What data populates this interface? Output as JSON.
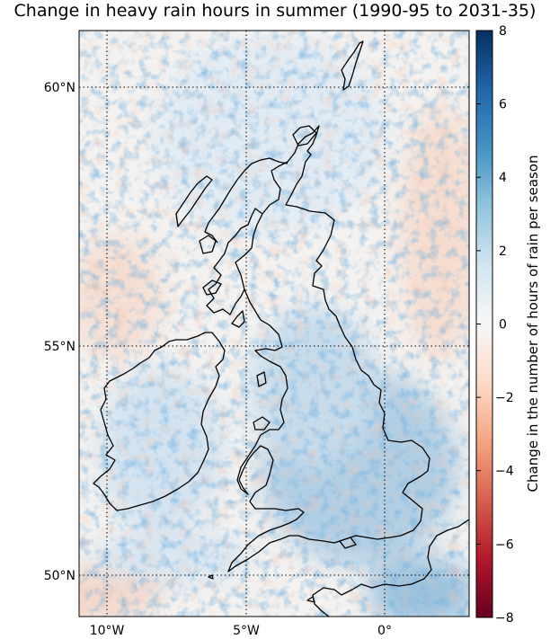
{
  "title": "Change in heavy rain hours in summer (1990-95 to 2031-35)",
  "map": {
    "projection": "Transverse Mercator (British National Grid)",
    "extent": {
      "lon": [
        -11,
        3
      ],
      "lat": [
        49,
        61
      ]
    },
    "gridlines": {
      "latitudes": [
        50,
        55,
        60
      ],
      "longitudes": [
        -10,
        -5,
        0
      ],
      "lat_labels": [
        "50°N",
        "55°N",
        "60°N"
      ],
      "lon_labels": [
        "10°W",
        "5°W",
        "0°"
      ],
      "style": "dotted"
    },
    "coastline_color": "#000000",
    "field": {
      "description_of_pattern": "noisy high-resolution field; mostly small positive changes over land, strongest over south-east England and the Midlands; mixed small negative changes over sea west of Ireland and North Sea",
      "colormap": "RdBu"
    }
  },
  "colorbar": {
    "label": "Change in the number of hours of rain per season",
    "ticks": [
      "8",
      "6",
      "4",
      "2",
      "0",
      "−2",
      "−4",
      "−6",
      "−8"
    ],
    "min": -8,
    "max": 8,
    "colors": [
      "#67001f",
      "#b2182b",
      "#d6604d",
      "#f4a582",
      "#fddbc7",
      "#f7f7f7",
      "#d1e5f0",
      "#92c5de",
      "#4393c3",
      "#2166ac",
      "#053061"
    ]
  }
}
